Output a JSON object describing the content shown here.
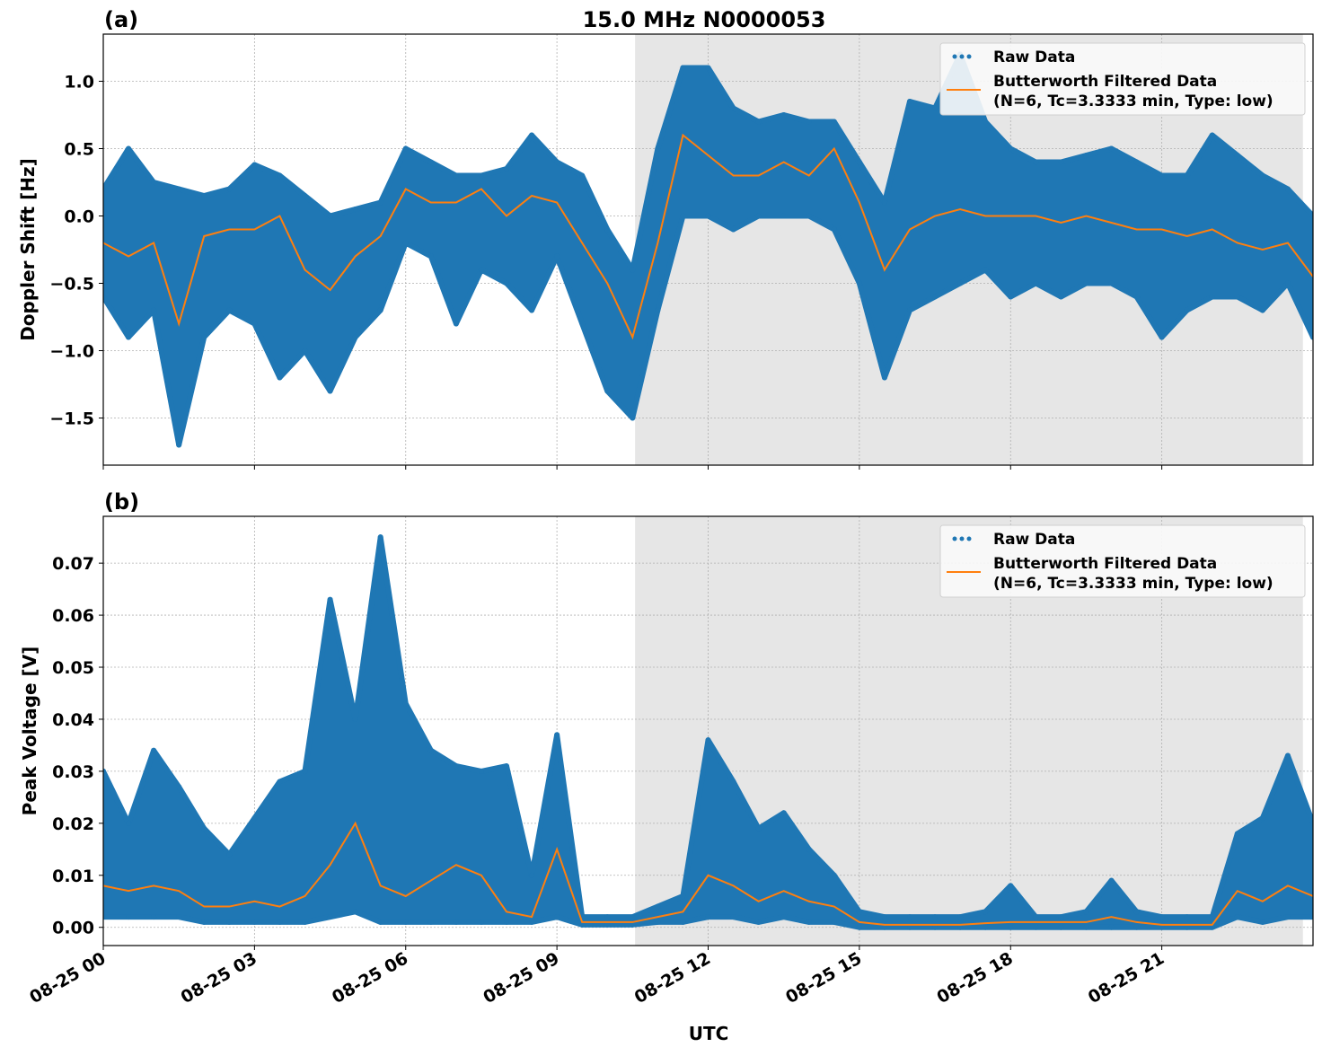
{
  "title": "15.0 MHz N0000053",
  "xlabel": "UTC",
  "x_tick_labels": [
    "08-25 00",
    "08-25 03",
    "08-25 06",
    "08-25 09",
    "08-25 12",
    "08-25 15",
    "08-25 18",
    "08-25 21"
  ],
  "x_tick_hours": [
    0,
    3,
    6,
    9,
    12,
    15,
    18,
    21
  ],
  "colors": {
    "raw": "#1f77b4",
    "filtered": "#ff7f0e",
    "shade": "#e6e6e6",
    "grid": "#b0b0b0"
  },
  "legend": {
    "raw": "Raw Data",
    "filtered_line1": "Butterworth Filtered Data",
    "filtered_line2": "(N=6, Tc=3.3333 min, Type: low)",
    "placement": "upper-right"
  },
  "chart_data": [
    {
      "type": "scatter+line",
      "panel_label": "(a)",
      "ylabel": "Doppler Shift [Hz]",
      "xlim_hours": [
        0,
        24
      ],
      "ylim": [
        -1.85,
        1.35
      ],
      "y_ticks": [
        -1.5,
        -1.0,
        -0.5,
        0.0,
        0.5,
        1.0
      ],
      "y_tick_labels": [
        "−1.5",
        "−1.0",
        "−0.5",
        "0.0",
        "0.5",
        "1.0"
      ],
      "grid": true,
      "shaded_hours": [
        10.55,
        23.8
      ],
      "x_hours": [
        0,
        0.5,
        1,
        1.5,
        2,
        2.5,
        3,
        3.5,
        4,
        4.5,
        5,
        5.5,
        6,
        6.5,
        7,
        7.5,
        8,
        8.5,
        9,
        9.5,
        10,
        10.5,
        11,
        11.5,
        12,
        12.5,
        13,
        13.5,
        14,
        14.5,
        15,
        15.5,
        16,
        16.5,
        17,
        17.5,
        18,
        18.5,
        19,
        19.5,
        20,
        20.5,
        21,
        21.5,
        22,
        22.5,
        23,
        23.5,
        24
      ],
      "filtered": [
        -0.2,
        -0.3,
        -0.2,
        -0.8,
        -0.15,
        -0.1,
        -0.1,
        0.0,
        -0.4,
        -0.55,
        -0.3,
        -0.15,
        0.2,
        0.1,
        0.1,
        0.2,
        0.0,
        0.15,
        0.1,
        -0.2,
        -0.5,
        -0.9,
        -0.2,
        0.6,
        0.45,
        0.3,
        0.3,
        0.4,
        0.3,
        0.5,
        0.1,
        -0.4,
        -0.1,
        0.0,
        0.05,
        0.0,
        0.0,
        0.0,
        -0.05,
        0.0,
        -0.05,
        -0.1,
        -0.1,
        -0.15,
        -0.1,
        -0.2,
        -0.25,
        -0.2,
        -0.45
      ],
      "raw_min": [
        -0.6,
        -0.9,
        -0.7,
        -1.7,
        -0.9,
        -0.7,
        -0.8,
        -1.2,
        -1.0,
        -1.3,
        -0.9,
        -0.7,
        -0.2,
        -0.3,
        -0.8,
        -0.4,
        -0.5,
        -0.7,
        -0.3,
        -0.8,
        -1.3,
        -1.5,
        -0.7,
        0.0,
        0.0,
        -0.1,
        0.0,
        0.0,
        0.0,
        -0.1,
        -0.5,
        -1.2,
        -0.7,
        -0.6,
        -0.5,
        -0.4,
        -0.6,
        -0.5,
        -0.6,
        -0.5,
        -0.5,
        -0.6,
        -0.9,
        -0.7,
        -0.6,
        -0.6,
        -0.7,
        -0.5,
        -0.9
      ],
      "raw_max": [
        0.2,
        0.5,
        0.25,
        0.2,
        0.15,
        0.2,
        0.38,
        0.3,
        0.15,
        0.0,
        0.05,
        0.1,
        0.5,
        0.4,
        0.3,
        0.3,
        0.35,
        0.6,
        0.4,
        0.3,
        -0.1,
        -0.4,
        0.5,
        1.1,
        1.1,
        0.8,
        0.7,
        0.75,
        0.7,
        0.7,
        0.4,
        0.1,
        0.85,
        0.8,
        1.2,
        0.7,
        0.5,
        0.4,
        0.4,
        0.45,
        0.5,
        0.4,
        0.3,
        0.3,
        0.6,
        0.45,
        0.3,
        0.2,
        0.0
      ]
    },
    {
      "type": "scatter+line",
      "panel_label": "(b)",
      "ylabel": "Peak Voltage [V]",
      "xlim_hours": [
        0,
        24
      ],
      "ylim": [
        -0.0035,
        0.079
      ],
      "y_ticks": [
        0.0,
        0.01,
        0.02,
        0.03,
        0.04,
        0.05,
        0.06,
        0.07
      ],
      "y_tick_labels": [
        "0.00",
        "0.01",
        "0.02",
        "0.03",
        "0.04",
        "0.05",
        "0.06",
        "0.07"
      ],
      "grid": true,
      "shaded_hours": [
        10.55,
        23.8
      ],
      "x_hours": [
        0,
        0.5,
        1,
        1.5,
        2,
        2.5,
        3,
        3.5,
        4,
        4.5,
        5,
        5.5,
        6,
        6.5,
        7,
        7.5,
        8,
        8.5,
        9,
        9.5,
        10,
        10.5,
        11,
        11.5,
        12,
        12.5,
        13,
        13.5,
        14,
        14.5,
        15,
        15.5,
        16,
        16.5,
        17,
        17.5,
        18,
        18.5,
        19,
        19.5,
        20,
        20.5,
        21,
        21.5,
        22,
        22.5,
        23,
        23.5,
        24
      ],
      "filtered": [
        0.008,
        0.007,
        0.008,
        0.007,
        0.004,
        0.004,
        0.005,
        0.004,
        0.006,
        0.012,
        0.02,
        0.008,
        0.006,
        0.009,
        0.012,
        0.01,
        0.003,
        0.002,
        0.015,
        0.001,
        0.001,
        0.001,
        0.002,
        0.003,
        0.01,
        0.008,
        0.005,
        0.007,
        0.005,
        0.004,
        0.001,
        0.0005,
        0.0005,
        0.0005,
        0.0005,
        0.0008,
        0.001,
        0.001,
        0.001,
        0.001,
        0.002,
        0.001,
        0.0005,
        0.0005,
        0.0005,
        0.007,
        0.005,
        0.008,
        0.006
      ],
      "raw_min": [
        0.002,
        0.002,
        0.002,
        0.002,
        0.001,
        0.001,
        0.001,
        0.001,
        0.001,
        0.002,
        0.003,
        0.001,
        0.001,
        0.001,
        0.001,
        0.001,
        0.001,
        0.001,
        0.002,
        0.0005,
        0.0005,
        0.0005,
        0.001,
        0.001,
        0.002,
        0.002,
        0.001,
        0.002,
        0.001,
        0.001,
        0.0,
        0.0,
        0.0,
        0.0,
        0.0,
        0.0,
        0.0,
        0.0,
        0.0,
        0.0,
        0.0,
        0.0,
        0.0,
        0.0,
        0.0,
        0.002,
        0.001,
        0.002,
        0.002
      ],
      "raw_max": [
        0.03,
        0.02,
        0.034,
        0.027,
        0.019,
        0.014,
        0.021,
        0.028,
        0.03,
        0.063,
        0.04,
        0.075,
        0.043,
        0.034,
        0.031,
        0.03,
        0.031,
        0.01,
        0.037,
        0.002,
        0.002,
        0.002,
        0.004,
        0.006,
        0.036,
        0.028,
        0.019,
        0.022,
        0.015,
        0.01,
        0.003,
        0.002,
        0.002,
        0.002,
        0.002,
        0.003,
        0.008,
        0.002,
        0.002,
        0.003,
        0.009,
        0.003,
        0.002,
        0.002,
        0.002,
        0.018,
        0.021,
        0.033,
        0.02
      ]
    }
  ]
}
